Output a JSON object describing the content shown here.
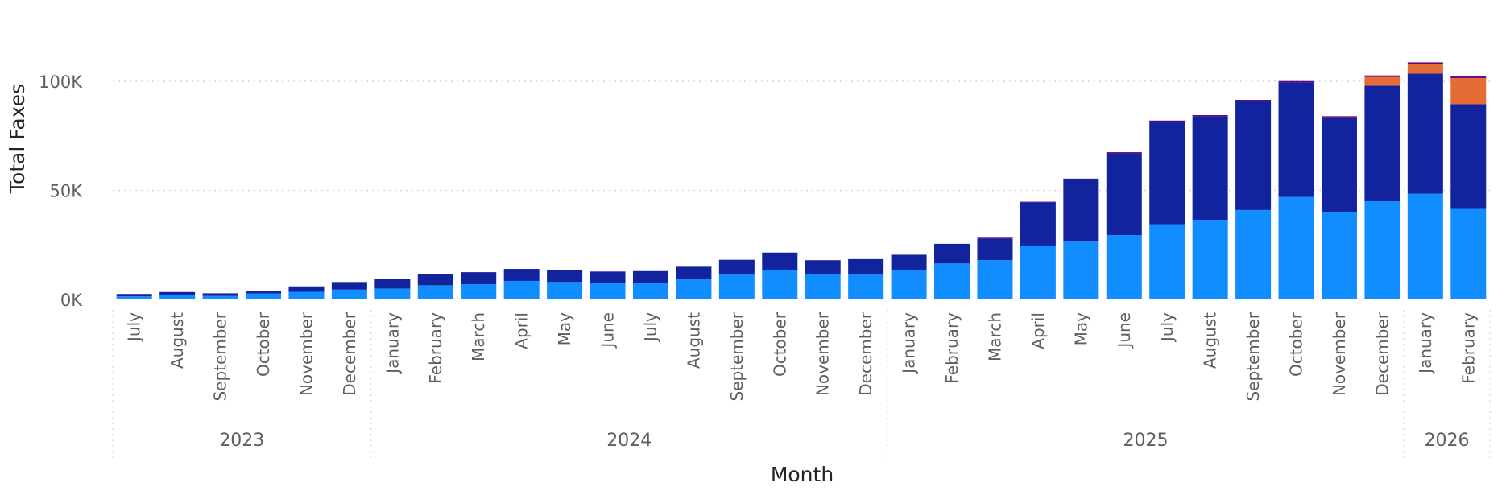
{
  "chart_data": {
    "type": "bar",
    "stacked": true,
    "xlabel": "Month",
    "ylabel": "Total Faxes",
    "ylim": [
      0,
      115000
    ],
    "yticks": [
      0,
      50000,
      100000
    ],
    "ytick_labels": [
      "0K",
      "50K",
      "100K"
    ],
    "grid": true,
    "categories": [
      "July",
      "August",
      "September",
      "October",
      "November",
      "December",
      "January",
      "February",
      "March",
      "April",
      "May",
      "June",
      "July",
      "August",
      "September",
      "October",
      "November",
      "December",
      "January",
      "February",
      "March",
      "April",
      "May",
      "June",
      "July",
      "August",
      "September",
      "October",
      "November",
      "December",
      "January",
      "February"
    ],
    "years": [
      {
        "label": "2023",
        "count": 6
      },
      {
        "label": "2024",
        "count": 12
      },
      {
        "label": "2025",
        "count": 12
      },
      {
        "label": "2026",
        "count": 2
      }
    ],
    "series": [
      {
        "color": "#118dff",
        "values": [
          1400,
          2000,
          1600,
          2700,
          3500,
          4500,
          5000,
          6500,
          7000,
          8500,
          8000,
          7500,
          7500,
          9500,
          11500,
          13500,
          11500,
          11500,
          13500,
          16500,
          18000,
          24500,
          26500,
          29500,
          34500,
          36500,
          41000,
          47000,
          40000,
          45000,
          48500,
          41500
        ]
      },
      {
        "color": "#12239e",
        "values": [
          1100,
          1400,
          1200,
          1300,
          2500,
          3500,
          4500,
          5000,
          5500,
          5500,
          5300,
          5300,
          5500,
          5500,
          6700,
          8000,
          6500,
          7000,
          7000,
          9000,
          10000,
          20000,
          28500,
          37500,
          47000,
          47500,
          50000,
          52500,
          43500,
          53000,
          55000,
          48000
        ]
      },
      {
        "color": "#e66c37",
        "values": [
          0,
          0,
          0,
          0,
          0,
          0,
          0,
          0,
          0,
          0,
          0,
          0,
          0,
          0,
          0,
          0,
          0,
          0,
          0,
          0,
          0,
          0,
          0,
          0,
          0,
          0,
          0,
          0,
          0,
          4000,
          4500,
          12000
        ]
      },
      {
        "color": "#6b007b",
        "values": [
          0,
          0,
          0,
          0,
          0,
          0,
          0,
          0,
          0,
          0,
          0,
          0,
          0,
          0,
          0,
          0,
          0,
          0,
          0,
          0,
          300,
          300,
          400,
          500,
          500,
          500,
          500,
          600,
          500,
          700,
          700,
          700
        ]
      }
    ]
  }
}
